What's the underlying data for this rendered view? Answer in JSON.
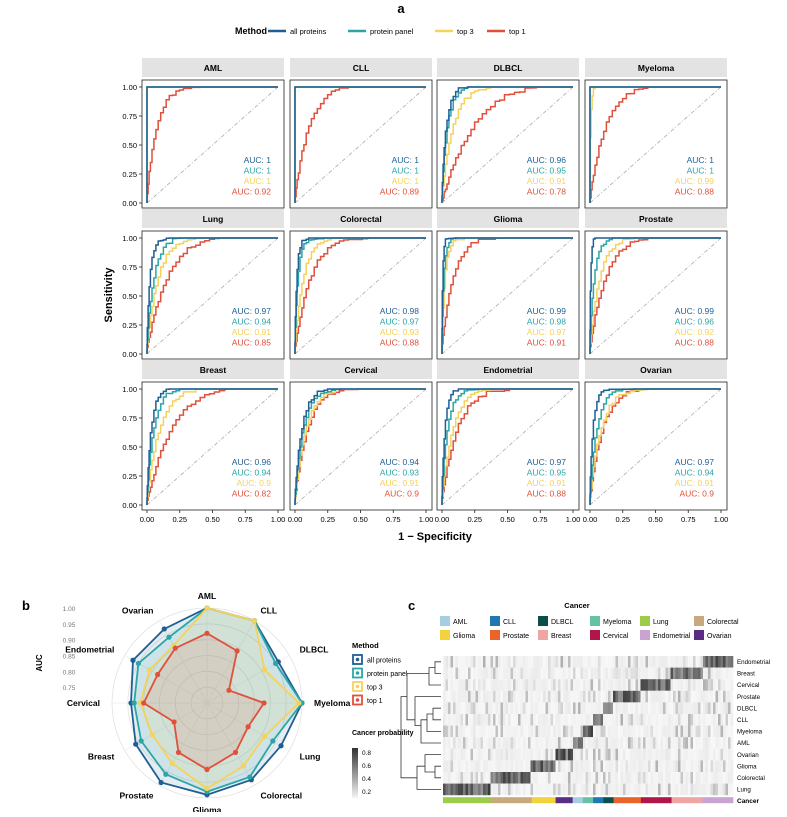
{
  "panel_labels": {
    "a": "a",
    "b": "b",
    "c": "c"
  },
  "colors": {
    "all_proteins": "#1f5f94",
    "protein_panel": "#2aa6a6",
    "top3": "#f5d25a",
    "top1": "#e0503c",
    "strip": "#e3e3e3",
    "diag": "#aaaaaa"
  },
  "chart_data": [
    {
      "type": "line",
      "title": "",
      "legend_title": "Method",
      "legend": [
        "all proteins",
        "protein panel",
        "top 3",
        "top 1"
      ],
      "xlabel": "1 − Specificity",
      "ylabel": "Sensitivity",
      "xlim": [
        0,
        1
      ],
      "ylim": [
        0,
        1
      ],
      "x_ticks": [
        "0.00",
        "0.25",
        "0.50",
        "0.75",
        "1.00"
      ],
      "y_ticks": [
        "0.00",
        "0.25",
        "0.50",
        "0.75",
        "1.00"
      ],
      "auc_prefix": "AUC: ",
      "panels": [
        {
          "name": "AML",
          "auc": [
            "1",
            "1",
            "1",
            "0.92"
          ]
        },
        {
          "name": "CLL",
          "auc": [
            "1",
            "1",
            "1",
            "0.89"
          ]
        },
        {
          "name": "DLBCL",
          "auc": [
            "0.96",
            "0.95",
            "0.91",
            "0.78"
          ]
        },
        {
          "name": "Myeloma",
          "auc": [
            "1",
            "1",
            "0.99",
            "0.88"
          ]
        },
        {
          "name": "Lung",
          "auc": [
            "0.97",
            "0.94",
            "0.91",
            "0.85"
          ]
        },
        {
          "name": "Colorectal",
          "auc": [
            "0.98",
            "0.97",
            "0.93",
            "0.88"
          ]
        },
        {
          "name": "Glioma",
          "auc": [
            "0.99",
            "0.98",
            "0.97",
            "0.91"
          ]
        },
        {
          "name": "Prostate",
          "auc": [
            "0.99",
            "0.96",
            "0.92",
            "0.88"
          ]
        },
        {
          "name": "Breast",
          "auc": [
            "0.96",
            "0.94",
            "0.9",
            "0.82"
          ]
        },
        {
          "name": "Cervical",
          "auc": [
            "0.94",
            "0.93",
            "0.91",
            "0.9"
          ]
        },
        {
          "name": "Endometrial",
          "auc": [
            "0.97",
            "0.95",
            "0.91",
            "0.88"
          ]
        },
        {
          "name": "Ovarian",
          "auc": [
            "0.97",
            "0.94",
            "0.91",
            "0.9"
          ]
        }
      ]
    },
    {
      "type": "radar",
      "ylabel": "AUC",
      "r_ticks": [
        "1.00",
        "0.95",
        "0.90",
        "0.85",
        "0.80",
        "0.75"
      ],
      "rlim": [
        0.7,
        1.0
      ],
      "axes": [
        "AML",
        "CLL",
        "DLBCL",
        "Myeloma",
        "Lung",
        "Colorectal",
        "Glioma",
        "Prostate",
        "Breast",
        "Cervical",
        "Endometrial",
        "Ovarian"
      ],
      "legend_title": "Method",
      "legend": [
        "all proteins",
        "protein panel",
        "top 3",
        "top 1"
      ],
      "series": [
        {
          "name": "all proteins",
          "values": [
            1,
            1,
            0.96,
            1,
            0.97,
            0.98,
            0.99,
            0.99,
            0.96,
            0.94,
            0.97,
            0.97
          ]
        },
        {
          "name": "protein panel",
          "values": [
            1,
            1,
            0.95,
            1,
            0.94,
            0.97,
            0.98,
            0.96,
            0.94,
            0.93,
            0.95,
            0.94
          ]
        },
        {
          "name": "top 3",
          "values": [
            1,
            1,
            0.91,
            0.99,
            0.91,
            0.93,
            0.97,
            0.92,
            0.9,
            0.91,
            0.91,
            0.91
          ]
        },
        {
          "name": "top 1",
          "values": [
            0.92,
            0.89,
            0.78,
            0.88,
            0.85,
            0.88,
            0.91,
            0.88,
            0.82,
            0.9,
            0.88,
            0.9
          ]
        }
      ],
      "colorbar_title": "Cancer probability",
      "colorbar_ticks": [
        "0.8",
        "0.6",
        "0.4",
        "0.2"
      ]
    },
    {
      "type": "heatmap",
      "legend_title": "Cancer",
      "legend": [
        {
          "name": "AML",
          "color": "#a6cee3"
        },
        {
          "name": "CLL",
          "color": "#1f78b4"
        },
        {
          "name": "DLBCL",
          "color": "#0b4f4a"
        },
        {
          "name": "Myeloma",
          "color": "#66c2a5"
        },
        {
          "name": "Lung",
          "color": "#9ccc4a"
        },
        {
          "name": "Colorectal",
          "color": "#c8a97e"
        },
        {
          "name": "Glioma",
          "color": "#f2d33b"
        },
        {
          "name": "Prostate",
          "color": "#e8642a"
        },
        {
          "name": "Breast",
          "color": "#f0a5a5"
        },
        {
          "name": "Cervical",
          "color": "#b0164a"
        },
        {
          "name": "Endometrial",
          "color": "#c9a3d1"
        },
        {
          "name": "Ovarian",
          "color": "#5b2c83"
        }
      ],
      "rows": [
        "Endometrial",
        "Breast",
        "Cervical",
        "Prostate",
        "DLBCL",
        "CLL",
        "Myeloma",
        "AML",
        "Ovarian",
        "Glioma",
        "Colorectal",
        "Lung"
      ],
      "annotation_label": "Cancer"
    }
  ]
}
